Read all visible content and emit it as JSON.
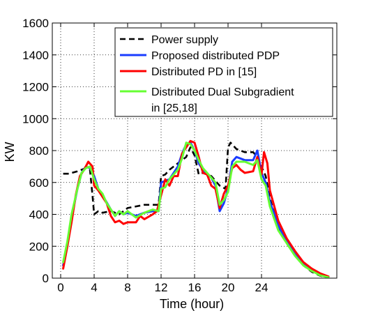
{
  "chart_data": {
    "type": "line",
    "xlabel": "Time (hour)",
    "ylabel": "KW",
    "xlim": [
      -1,
      33
    ],
    "ylim": [
      0,
      1600
    ],
    "x_ticks": [
      0,
      4,
      8,
      12,
      16,
      20,
      24
    ],
    "x_tick_labels": [
      "0",
      "4",
      "8",
      "12",
      "16",
      "20",
      "24"
    ],
    "y_ticks": [
      0,
      200,
      400,
      600,
      800,
      1000,
      1200,
      1400,
      1600
    ],
    "y_tick_labels": [
      "0",
      "200",
      "400",
      "600",
      "800",
      "1000",
      "1200",
      "1400",
      "1600"
    ],
    "grid": true,
    "legend_position": "top-right",
    "series": [
      {
        "name": "Power supply",
        "color": "#000000",
        "dash": "dashed",
        "points": [
          [
            0.3,
            655
          ],
          [
            1,
            655
          ],
          [
            2,
            670
          ],
          [
            3,
            690
          ],
          [
            3.5,
            680
          ],
          [
            3.8,
            520
          ],
          [
            4,
            400
          ],
          [
            4.5,
            420
          ],
          [
            5,
            410
          ],
          [
            6,
            420
          ],
          [
            7,
            400
          ],
          [
            8,
            440
          ],
          [
            9,
            450
          ],
          [
            10,
            460
          ],
          [
            11,
            460
          ],
          [
            11.7,
            460
          ],
          [
            12,
            640
          ],
          [
            12.5,
            650
          ],
          [
            13,
            680
          ],
          [
            14,
            720
          ],
          [
            15,
            760
          ],
          [
            15.5,
            820
          ],
          [
            16,
            770
          ],
          [
            16.5,
            650
          ],
          [
            17,
            660
          ],
          [
            18,
            640
          ],
          [
            19,
            580
          ],
          [
            19.7,
            560
          ],
          [
            20,
            820
          ],
          [
            20.3,
            850
          ],
          [
            21,
            810
          ],
          [
            22,
            790
          ],
          [
            23,
            790
          ],
          [
            23.5,
            760
          ],
          [
            24,
            700
          ],
          [
            24.5,
            640
          ],
          [
            25,
            500
          ],
          [
            26,
            320
          ],
          [
            27,
            220
          ],
          [
            28,
            140
          ],
          [
            29,
            80
          ],
          [
            30,
            40
          ],
          [
            31,
            15
          ],
          [
            32,
            5
          ]
        ]
      },
      {
        "name": "Proposed distributed PDP",
        "color": "#1a3cff",
        "dash": "solid",
        "points": [
          [
            0.3,
            80
          ],
          [
            0.8,
            220
          ],
          [
            1.3,
            380
          ],
          [
            2,
            560
          ],
          [
            2.5,
            660
          ],
          [
            3,
            700
          ],
          [
            3.5,
            690
          ],
          [
            4,
            640
          ],
          [
            4.5,
            560
          ],
          [
            5,
            520
          ],
          [
            6,
            430
          ],
          [
            6.5,
            390
          ],
          [
            7,
            420
          ],
          [
            7.5,
            400
          ],
          [
            8,
            410
          ],
          [
            9,
            390
          ],
          [
            10,
            410
          ],
          [
            11,
            420
          ],
          [
            11.7,
            420
          ],
          [
            12,
            600
          ],
          [
            13,
            620
          ],
          [
            14,
            700
          ],
          [
            14.5,
            780
          ],
          [
            15,
            840
          ],
          [
            15.5,
            850
          ],
          [
            16,
            800
          ],
          [
            16.5,
            720
          ],
          [
            17,
            680
          ],
          [
            18,
            630
          ],
          [
            18.5,
            580
          ],
          [
            19,
            420
          ],
          [
            19.5,
            470
          ],
          [
            20,
            560
          ],
          [
            20.5,
            730
          ],
          [
            21,
            760
          ],
          [
            22,
            740
          ],
          [
            23,
            740
          ],
          [
            23.5,
            800
          ],
          [
            24,
            660
          ],
          [
            24.5,
            600
          ],
          [
            25,
            480
          ],
          [
            26,
            330
          ],
          [
            27,
            230
          ],
          [
            28,
            150
          ],
          [
            29,
            90
          ],
          [
            30,
            50
          ],
          [
            31,
            20
          ],
          [
            32,
            5
          ]
        ]
      },
      {
        "name": "Distributed PD in [15]",
        "color": "#ff0000",
        "dash": "solid",
        "points": [
          [
            0.3,
            60
          ],
          [
            0.8,
            200
          ],
          [
            1.3,
            350
          ],
          [
            1.8,
            520
          ],
          [
            2.3,
            640
          ],
          [
            2.8,
            680
          ],
          [
            3.3,
            730
          ],
          [
            3.8,
            700
          ],
          [
            4,
            580
          ],
          [
            4.5,
            550
          ],
          [
            5,
            510
          ],
          [
            5.5,
            470
          ],
          [
            6,
            390
          ],
          [
            6.5,
            350
          ],
          [
            7,
            360
          ],
          [
            7.5,
            340
          ],
          [
            8,
            350
          ],
          [
            9,
            350
          ],
          [
            9.5,
            390
          ],
          [
            10,
            370
          ],
          [
            11,
            400
          ],
          [
            11.5,
            420
          ],
          [
            12,
            520
          ],
          [
            12.5,
            620
          ],
          [
            13,
            580
          ],
          [
            13.5,
            640
          ],
          [
            14,
            640
          ],
          [
            14.5,
            780
          ],
          [
            15,
            820
          ],
          [
            15.5,
            860
          ],
          [
            16,
            850
          ],
          [
            16.5,
            760
          ],
          [
            17,
            660
          ],
          [
            17.5,
            650
          ],
          [
            18,
            580
          ],
          [
            18.5,
            560
          ],
          [
            19,
            440
          ],
          [
            19.5,
            530
          ],
          [
            20,
            580
          ],
          [
            20.5,
            690
          ],
          [
            21,
            710
          ],
          [
            21.5,
            680
          ],
          [
            22,
            660
          ],
          [
            23,
            670
          ],
          [
            23.5,
            760
          ],
          [
            24,
            650
          ],
          [
            24.3,
            790
          ],
          [
            24.7,
            720
          ],
          [
            25,
            550
          ],
          [
            26,
            360
          ],
          [
            27,
            250
          ],
          [
            28,
            170
          ],
          [
            29,
            100
          ],
          [
            30,
            60
          ],
          [
            31,
            30
          ],
          [
            32,
            10
          ]
        ]
      },
      {
        "name": "Distributed Dual Subgradient in [25,18]",
        "color": "#66ff33",
        "dash": "solid",
        "points": [
          [
            0.3,
            100
          ],
          [
            0.8,
            230
          ],
          [
            1.3,
            400
          ],
          [
            2,
            560
          ],
          [
            2.5,
            660
          ],
          [
            3,
            690
          ],
          [
            3.5,
            700
          ],
          [
            4,
            620
          ],
          [
            4.5,
            560
          ],
          [
            5,
            530
          ],
          [
            5.5,
            470
          ],
          [
            6,
            430
          ],
          [
            6.5,
            390
          ],
          [
            7,
            420
          ],
          [
            7.5,
            400
          ],
          [
            8,
            420
          ],
          [
            9,
            380
          ],
          [
            10,
            410
          ],
          [
            11,
            430
          ],
          [
            11.7,
            420
          ],
          [
            12,
            560
          ],
          [
            12.5,
            570
          ],
          [
            13,
            620
          ],
          [
            14,
            680
          ],
          [
            14.5,
            750
          ],
          [
            15,
            850
          ],
          [
            15.5,
            840
          ],
          [
            16,
            800
          ],
          [
            16.5,
            740
          ],
          [
            17,
            690
          ],
          [
            18,
            630
          ],
          [
            18.5,
            600
          ],
          [
            19,
            460
          ],
          [
            19.5,
            490
          ],
          [
            20,
            540
          ],
          [
            20.5,
            700
          ],
          [
            21,
            730
          ],
          [
            22,
            730
          ],
          [
            23,
            710
          ],
          [
            23.5,
            740
          ],
          [
            24,
            620
          ],
          [
            24.5,
            580
          ],
          [
            25,
            450
          ],
          [
            26,
            300
          ],
          [
            27,
            220
          ],
          [
            28,
            140
          ],
          [
            29,
            80
          ],
          [
            30,
            45
          ],
          [
            31,
            18
          ],
          [
            32,
            5
          ]
        ]
      }
    ]
  }
}
